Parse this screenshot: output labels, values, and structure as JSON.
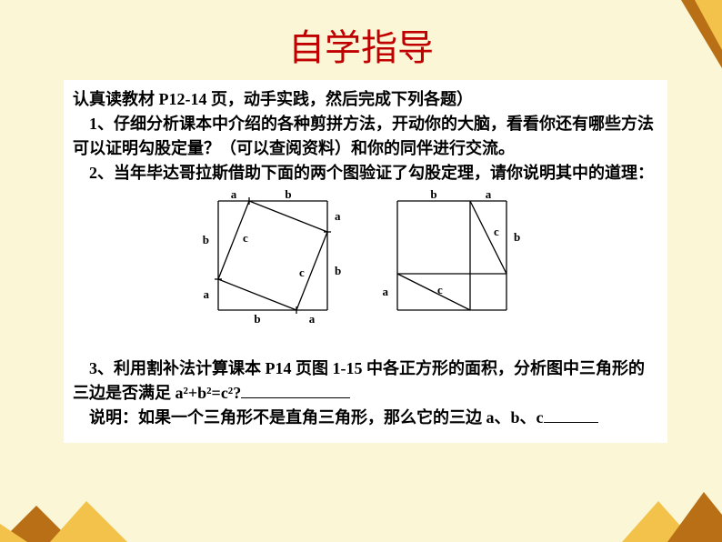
{
  "title": "自学指导",
  "p_intro": "认真读教材 P12-14 页，动手实践，然后完成下列各题）",
  "p1": "1、仔细分析课本中介绍的各种剪拼方法，开动你的大脑，看看你还有哪些方法可以证明勾股定量？（可以查阅资料）和你的同伴进行交流。",
  "p2": "2、当年毕达哥拉斯借助下面的两个图验证了勾股定理，请你说明其中的道理：",
  "p3_a": "3、利用割补法计算课本 P14 页图 1-15 中各正方形的面积，分析图中三角形的三边是否满足 a²+b²=c²?",
  "p4_a": "说明：如果一个三角形不是直角三角形，那么它的三边 a、b、c",
  "fig1": {
    "outer": 120,
    "a": 34,
    "b": 86,
    "labels": {
      "a": "a",
      "b": "b",
      "c": "c"
    }
  },
  "fig2": {
    "outer": 120,
    "a": 40,
    "b": 80,
    "labels": {
      "a": "a",
      "b": "b",
      "c": "c"
    }
  },
  "colors": {
    "bg": "#fbf6d5",
    "title": "#c00000",
    "deco_dark": "#b96f15",
    "deco_light": "#f2c24a",
    "white": "#ffffff"
  }
}
